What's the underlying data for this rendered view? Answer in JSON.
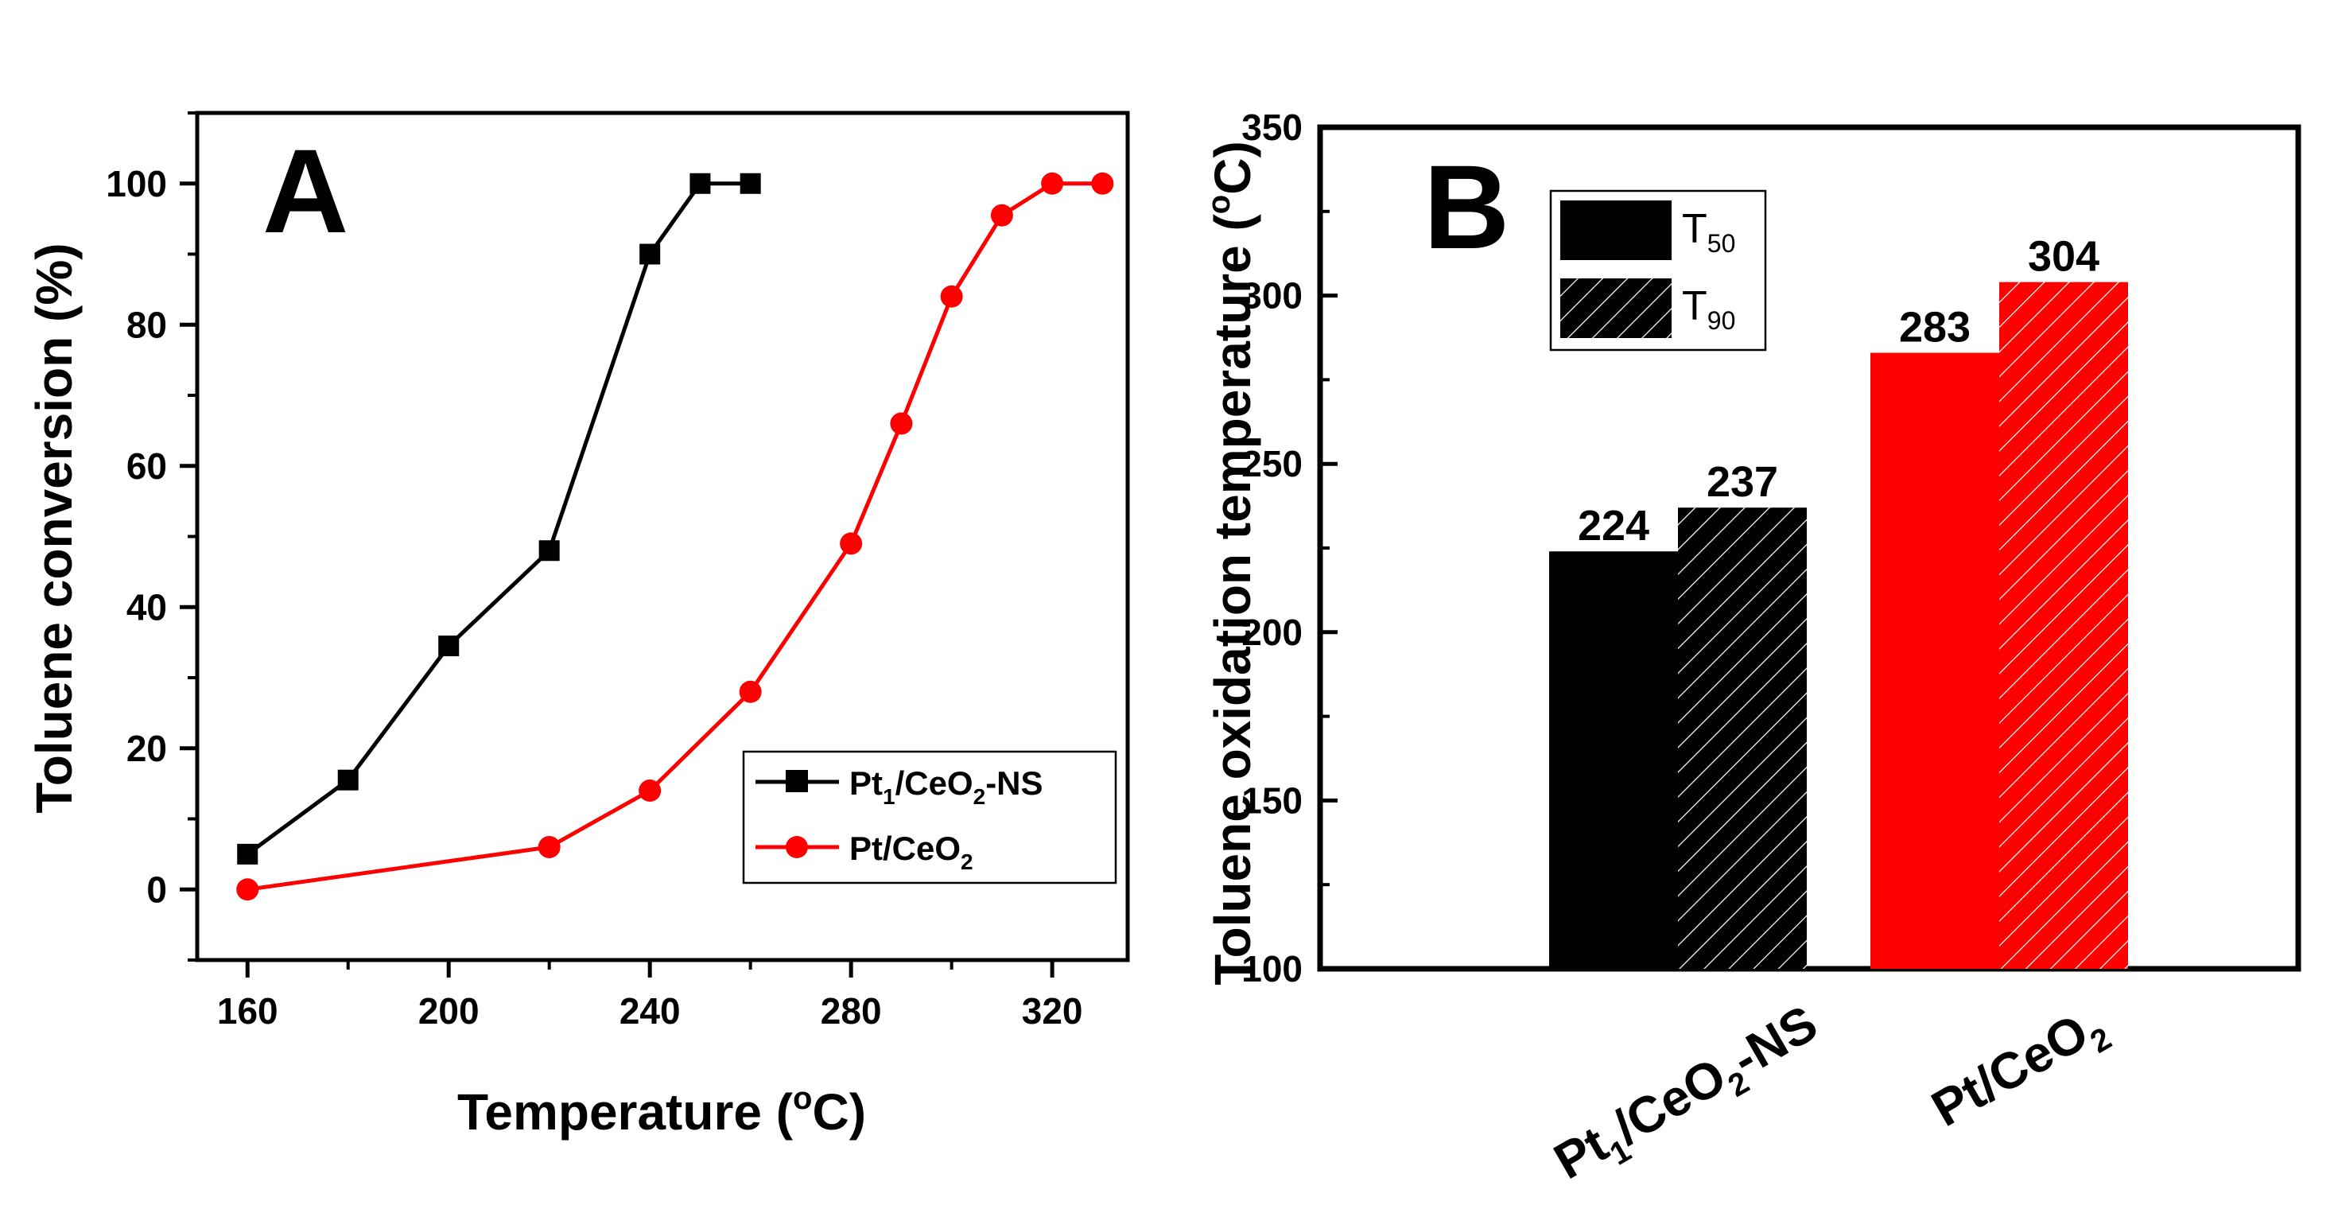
{
  "chart_data": [
    {
      "panel": "A",
      "type": "line",
      "xlabel": "Temperature (",
      "xlabel_sup": "o",
      "xlabel_end": "C)",
      "ylabel": "Toluene conversion (%)",
      "xlim": [
        150,
        335
      ],
      "ylim": [
        -10,
        110
      ],
      "xticks": [
        160,
        200,
        240,
        280,
        320
      ],
      "yticks": [
        0,
        20,
        40,
        60,
        80,
        100
      ],
      "legend_position": "bottom-right",
      "series": [
        {
          "name": "Pt1/CeO2-NS",
          "legend_parts": [
            "Pt",
            "1",
            "/CeO",
            "2",
            "-NS"
          ],
          "color": "#000000",
          "marker": "square",
          "x": [
            160,
            180,
            200,
            220,
            240,
            250,
            260
          ],
          "y": [
            5,
            15.5,
            34.5,
            48,
            90,
            100,
            100
          ]
        },
        {
          "name": "Pt/CeO2",
          "legend_parts": [
            "Pt/CeO",
            "2"
          ],
          "color": "#ff0000",
          "marker": "circle",
          "x": [
            160,
            220,
            240,
            260,
            280,
            290,
            300,
            310,
            320,
            330
          ],
          "y": [
            0,
            6,
            14,
            28,
            49,
            66,
            84,
            95.5,
            100,
            100
          ]
        }
      ]
    },
    {
      "panel": "B",
      "type": "bar",
      "ylabel": "Toluene oxidation temperature (",
      "ylabel_sup": "o",
      "ylabel_end": "C)",
      "ylim": [
        100,
        350
      ],
      "yticks": [
        100,
        150,
        200,
        250,
        300,
        350
      ],
      "categories": [
        "Pt1/CeO2-NS",
        "Pt/CeO2"
      ],
      "category_parts": [
        [
          "Pt",
          "1",
          "/CeO",
          "2",
          "-NS"
        ],
        [
          "Pt/CeO",
          "2"
        ]
      ],
      "category_colors": [
        "#000000",
        "#ff0000"
      ],
      "legend_position": "top-left",
      "series": [
        {
          "name": "T50",
          "legend_main": "T",
          "legend_sub": "50",
          "pattern": "solid",
          "values": [
            224,
            283
          ]
        },
        {
          "name": "T90",
          "legend_main": "T",
          "legend_sub": "90",
          "pattern": "hatched",
          "values": [
            237,
            304
          ]
        }
      ]
    }
  ]
}
